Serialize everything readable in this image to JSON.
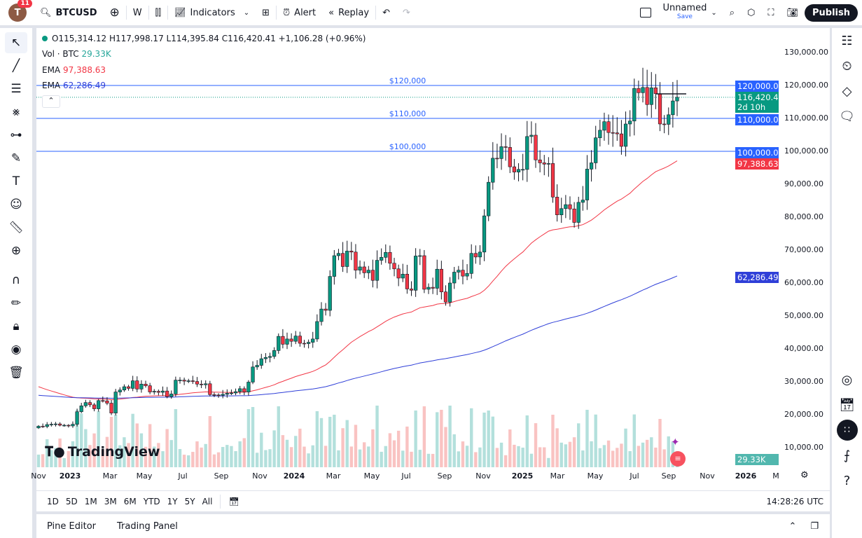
{
  "topbar": {
    "avatar_letter": "T",
    "notif_count": "11",
    "symbol": "BTCUSD",
    "interval": "W",
    "indicators": "Indicators",
    "alert": "Alert",
    "replay": "Replay",
    "layout_name": "Unnamed",
    "layout_save": "Save",
    "publish": "Publish"
  },
  "legend": {
    "ohlc": "O115,314.12 H117,998.17 L114,395.84 C116,420.41 +1,106.28 (+0.96%)",
    "vol_label": "Vol · BTC",
    "vol_value": "29.33K",
    "ema1_label": "EMA",
    "ema1_value": "97,388.63",
    "ema2_label": "EMA",
    "ema2_value": "62,286.49"
  },
  "hlines": [
    {
      "label": "$120,000",
      "price": 120000
    },
    {
      "label": "$110,000",
      "price": 110000
    },
    {
      "label": "$100,000",
      "price": 100000
    }
  ],
  "price_axis": [
    "130,000.00",
    "120,000.00",
    "110,000.00",
    "100,000.00",
    "90,000.00",
    "80,000.00",
    "70,000.00",
    "60,000.00",
    "50,000.00",
    "40,000.00",
    "30,000.00",
    "20,000.00",
    "10,000.00"
  ],
  "tags": {
    "p120": "120,000.00",
    "last": "116,420.41",
    "countdown": "2d 10h",
    "p110": "110,000.00",
    "p100": "100,000.00",
    "ema1": "97,388.63",
    "ema2": "62,286.49",
    "vol": "29.33K"
  },
  "time_axis": [
    "Nov",
    "2023",
    "Mar",
    "May",
    "Jul",
    "Sep",
    "Nov",
    "2024",
    "Mar",
    "May",
    "Jul",
    "Sep",
    "Nov",
    "2025",
    "Mar",
    "May",
    "Jul",
    "Sep",
    "Nov",
    "2026",
    "M"
  ],
  "ranges": [
    "1D",
    "5D",
    "1M",
    "3M",
    "6M",
    "YTD",
    "1Y",
    "5Y",
    "All"
  ],
  "clock": "14:28:26 UTC",
  "logo": "TradingView",
  "bottom": {
    "pine": "Pine Editor",
    "trading": "Trading Panel"
  },
  "colors": {
    "up": "#089981",
    "down": "#f23645",
    "ema1": "#f23645",
    "ema2": "#2f3fd8",
    "hline": "#2962ff"
  },
  "chart_data": {
    "type": "candlestick",
    "interval": "weekly",
    "first_week": "2022-11",
    "ylim": [
      10000,
      135000
    ],
    "closes_k": [
      16.5,
      16.4,
      17.0,
      17.1,
      17.2,
      16.8,
      16.8,
      16.6,
      17.1,
      20.9,
      22.7,
      23.7,
      23.0,
      21.8,
      24.3,
      24.2,
      23.5,
      20.5,
      26.9,
      27.5,
      28.5,
      28.0,
      30.3,
      27.8,
      29.3,
      28.8,
      26.9,
      27.1,
      26.8,
      27.2,
      25.5,
      26.3,
      30.5,
      30.5,
      30.2,
      30.3,
      30.1,
      29.3,
      29.1,
      29.4,
      26.1,
      26.0,
      25.9,
      26.2,
      26.5,
      26.6,
      27.0,
      27.9,
      26.9,
      29.9,
      34.5,
      35.0,
      37.0,
      37.4,
      37.7,
      39.5,
      43.8,
      41.4,
      43.0,
      42.3,
      43.9,
      41.7,
      41.6,
      42.0,
      43.0,
      48.3,
      52.1,
      51.7,
      62.0,
      68.3,
      69.0,
      65.0,
      69.7,
      69.4,
      63.9,
      64.9,
      63.1,
      63.9,
      60.8,
      66.9,
      67.8,
      69.3,
      66.0,
      64.3,
      61.5,
      62.7,
      58.2,
      57.8,
      68.2,
      68.3,
      58.1,
      58.7,
      58.4,
      64.2,
      57.3,
      54.2,
      60.0,
      63.3,
      63.9,
      62.1,
      62.9,
      69.0,
      67.9,
      69.4,
      80.4,
      90.6,
      97.9,
      97.8,
      101.4,
      101.2,
      95.3,
      93.7,
      94.5,
      94.5,
      104.5,
      104.9,
      97.4,
      96.5,
      96.1,
      96.3,
      86.1,
      80.7,
      82.6,
      83.8,
      82.5,
      78.4,
      84.5,
      85.2,
      94.6,
      96.5,
      104.1,
      106.4,
      109.0,
      105.7,
      105.6,
      105.3,
      101.5,
      108.3,
      109.2,
      119.1,
      117.8,
      119.4,
      114.2,
      119.3,
      117.5,
      108.3,
      108.2,
      111.1,
      115.3,
      116.42
    ]
  }
}
